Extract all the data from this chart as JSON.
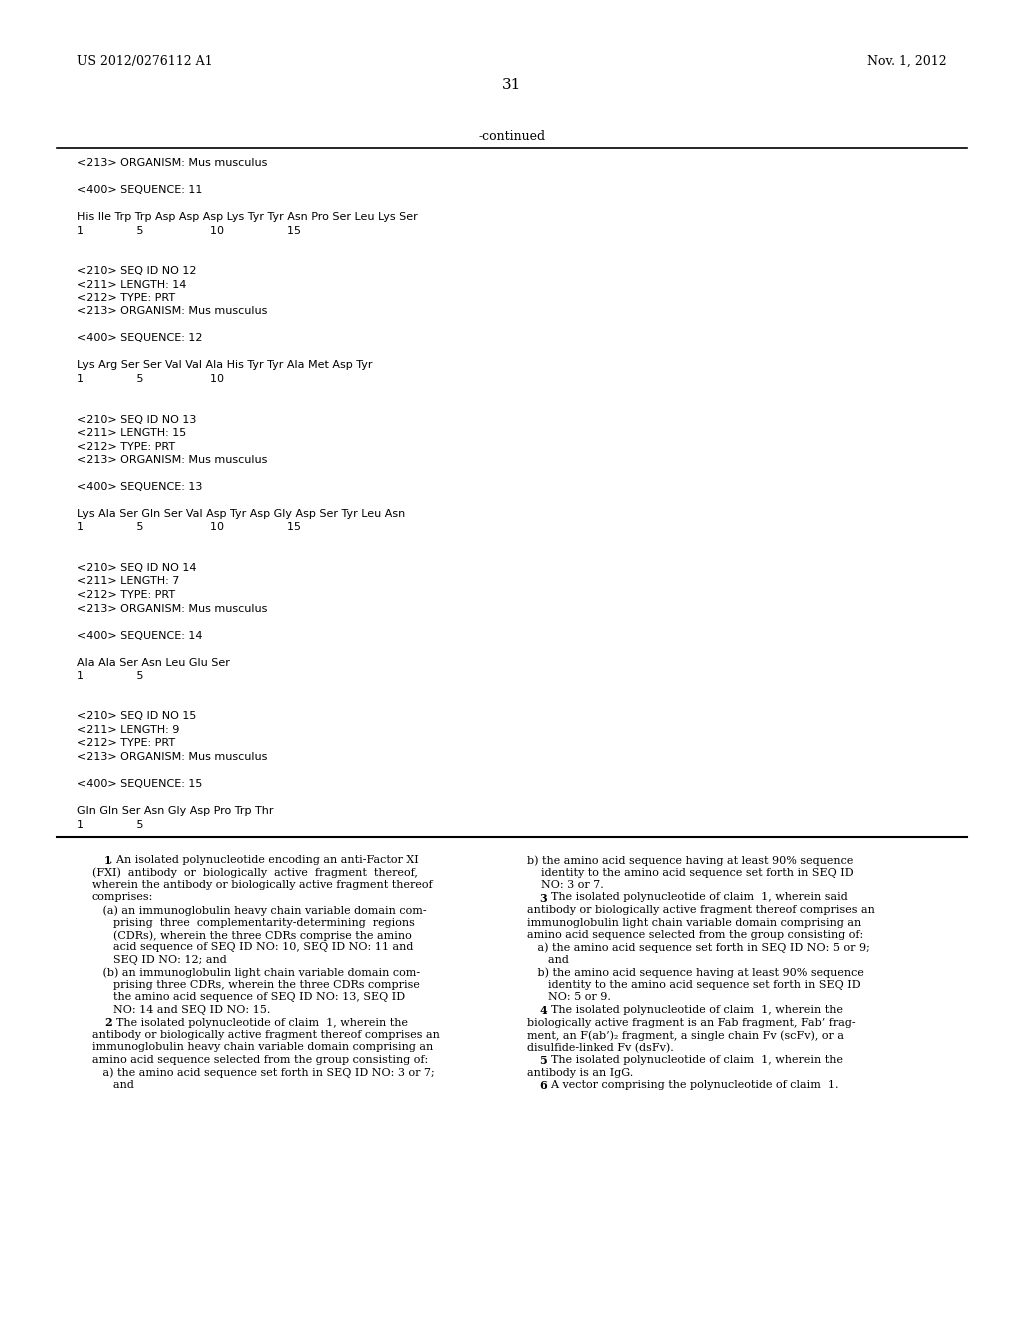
{
  "background_color": "#ffffff",
  "left_header": "US 2012/0276112 A1",
  "right_header": "Nov. 1, 2012",
  "page_number": "31",
  "continued_label": "-continued",
  "mono_content": [
    "<213> ORGANISM: Mus musculus",
    "",
    "<400> SEQUENCE: 11",
    "",
    "His Ile Trp Trp Asp Asp Asp Lys Tyr Tyr Asn Pro Ser Leu Lys Ser",
    "1               5                   10                  15",
    "",
    "",
    "<210> SEQ ID NO 12",
    "<211> LENGTH: 14",
    "<212> TYPE: PRT",
    "<213> ORGANISM: Mus musculus",
    "",
    "<400> SEQUENCE: 12",
    "",
    "Lys Arg Ser Ser Val Val Ala His Tyr Tyr Ala Met Asp Tyr",
    "1               5                   10",
    "",
    "",
    "<210> SEQ ID NO 13",
    "<211> LENGTH: 15",
    "<212> TYPE: PRT",
    "<213> ORGANISM: Mus musculus",
    "",
    "<400> SEQUENCE: 13",
    "",
    "Lys Ala Ser Gln Ser Val Asp Tyr Asp Gly Asp Ser Tyr Leu Asn",
    "1               5                   10                  15",
    "",
    "",
    "<210> SEQ ID NO 14",
    "<211> LENGTH: 7",
    "<212> TYPE: PRT",
    "<213> ORGANISM: Mus musculus",
    "",
    "<400> SEQUENCE: 14",
    "",
    "Ala Ala Ser Asn Leu Glu Ser",
    "1               5",
    "",
    "",
    "<210> SEQ ID NO 15",
    "<211> LENGTH: 9",
    "<212> TYPE: PRT",
    "<213> ORGANISM: Mus musculus",
    "",
    "<400> SEQUENCE: 15",
    "",
    "Gln Gln Ser Asn Gly Asp Pro Trp Thr",
    "1               5"
  ],
  "claims_left": [
    {
      "text": "    ",
      "bold_part": "1",
      "rest": ". An isolated polynucleotide encoding an anti-Factor XI"
    },
    {
      "text": "(FXI)  antibody  or  biologically  active  fragment  thereof,"
    },
    {
      "text": "wherein the antibody or biologically active fragment thereof"
    },
    {
      "text": "comprises:"
    },
    {
      "text": "   (a) an immunoglobulin heavy chain variable domain com-"
    },
    {
      "text": "      prising  three  complementarity-determining  regions"
    },
    {
      "text": "      (CDRs), wherein the three CDRs comprise the amino"
    },
    {
      "text": "      acid sequence of SEQ ID NO: 10, SEQ ID NO: 11 and"
    },
    {
      "text": "      SEQ ID NO: 12; and"
    },
    {
      "text": "   (b) an immunoglobulin light chain variable domain com-"
    },
    {
      "text": "      prising three CDRs, wherein the three CDRs comprise"
    },
    {
      "text": "      the amino acid sequence of SEQ ID NO: 13, SEQ ID"
    },
    {
      "text": "      NO: 14 and SEQ ID NO: 15."
    },
    {
      "text": "    ",
      "bold_part": "2",
      "rest": ". The isolated polynucleotide of claim  1, wherein the"
    },
    {
      "text": "antibody or biologically active fragment thereof comprises an"
    },
    {
      "text": "immunoglobulin heavy chain variable domain comprising an"
    },
    {
      "text": "amino acid sequence selected from the group consisting of:"
    },
    {
      "text": "   a) the amino acid sequence set forth in SEQ ID NO: 3 or 7;"
    },
    {
      "text": "      and"
    }
  ],
  "claims_right": [
    {
      "text": "b) the amino acid sequence having at least 90% sequence"
    },
    {
      "text": "    identity to the amino acid sequence set forth in SEQ ID"
    },
    {
      "text": "    NO: 3 or 7."
    },
    {
      "text": "    ",
      "bold_part": "3",
      "rest": ". The isolated polynucleotide of claim  1, wherein said"
    },
    {
      "text": "antibody or biologically active fragment thereof comprises an"
    },
    {
      "text": "immunoglobulin light chain variable domain comprising an"
    },
    {
      "text": "amino acid sequence selected from the group consisting of:"
    },
    {
      "text": "   a) the amino acid sequence set forth in SEQ ID NO: 5 or 9;"
    },
    {
      "text": "      and"
    },
    {
      "text": "   b) the amino acid sequence having at least 90% sequence"
    },
    {
      "text": "      identity to the amino acid sequence set forth in SEQ ID"
    },
    {
      "text": "      NO: 5 or 9."
    },
    {
      "text": "    ",
      "bold_part": "4",
      "rest": ". The isolated polynucleotide of claim  1, wherein the"
    },
    {
      "text": "biologically active fragment is an Fab fragment, Fab’ frag-"
    },
    {
      "text": "ment, an F(ab’)₂ fragment, a single chain Fv (scFv), or a"
    },
    {
      "text": "disulfide-linked Fv (dsFv)."
    },
    {
      "text": "    ",
      "bold_part": "5",
      "rest": ". The isolated polynucleotide of claim  1, wherein the"
    },
    {
      "text": "antibody is an IgG."
    },
    {
      "text": "    ",
      "bold_part": "6",
      "rest": ". A vector comprising the polynucleotide of claim  1."
    }
  ]
}
